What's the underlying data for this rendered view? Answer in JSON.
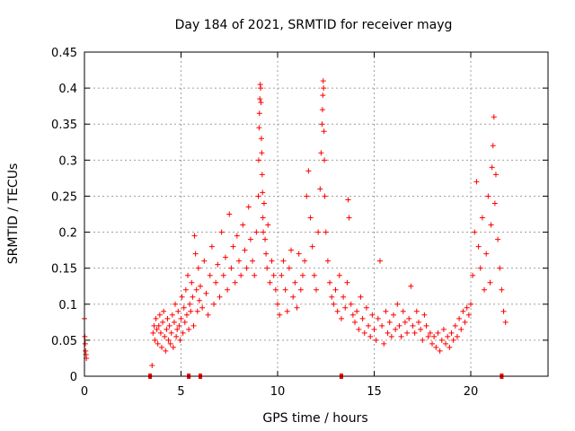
{
  "chart_data": {
    "type": "scatter",
    "title": "Day 184 of 2021, SRMTID for receiver mayg",
    "xlabel": "GPS time / hours",
    "ylabel": "SRMTID / TECUs",
    "xlim": [
      0,
      24
    ],
    "ylim": [
      0,
      0.45
    ],
    "xticks": [
      0,
      5,
      10,
      15,
      20
    ],
    "yticks": [
      0,
      0.05,
      0.1,
      0.15,
      0.2,
      0.25,
      0.3,
      0.35,
      0.4,
      0.45
    ],
    "grid": true,
    "marker": "plus",
    "color": "#ff0000",
    "x": [
      0.0,
      0.02,
      0.04,
      0.06,
      0.08,
      0.1,
      3.5,
      3.55,
      3.6,
      3.65,
      3.7,
      3.75,
      3.8,
      3.85,
      3.9,
      3.95,
      4.0,
      4.05,
      4.1,
      4.15,
      4.2,
      4.25,
      4.3,
      4.35,
      4.4,
      4.45,
      4.5,
      4.55,
      4.6,
      4.65,
      4.7,
      4.75,
      4.8,
      4.85,
      4.9,
      4.95,
      5.0,
      5.05,
      5.1,
      5.15,
      5.2,
      5.25,
      5.3,
      5.35,
      5.4,
      5.45,
      5.5,
      5.55,
      5.6,
      5.65,
      5.7,
      5.75,
      5.8,
      5.85,
      5.9,
      5.95,
      6.0,
      6.1,
      6.2,
      6.3,
      6.4,
      6.5,
      6.6,
      6.7,
      6.8,
      6.9,
      7.0,
      7.1,
      7.2,
      7.3,
      7.4,
      7.5,
      7.6,
      7.7,
      7.8,
      7.9,
      8.0,
      8.1,
      8.2,
      8.3,
      8.4,
      8.5,
      8.6,
      8.7,
      8.8,
      8.9,
      9.0,
      9.02,
      9.04,
      9.06,
      9.08,
      9.1,
      9.12,
      9.14,
      9.16,
      9.18,
      9.2,
      9.22,
      9.24,
      9.26,
      9.3,
      9.35,
      9.4,
      9.45,
      9.5,
      9.6,
      9.7,
      9.8,
      9.9,
      10.0,
      10.1,
      10.2,
      10.3,
      10.4,
      10.5,
      10.6,
      10.7,
      10.8,
      10.9,
      11.0,
      11.1,
      11.2,
      11.3,
      11.4,
      11.5,
      11.6,
      11.7,
      11.8,
      11.9,
      12.0,
      12.1,
      12.2,
      12.25,
      12.3,
      12.32,
      12.34,
      12.36,
      12.38,
      12.4,
      12.42,
      12.44,
      12.5,
      12.6,
      12.7,
      12.8,
      12.9,
      13.0,
      13.1,
      13.2,
      13.3,
      13.4,
      13.5,
      13.6,
      13.65,
      13.7,
      13.8,
      13.9,
      14.0,
      14.1,
      14.2,
      14.3,
      14.4,
      14.5,
      14.6,
      14.7,
      14.8,
      14.9,
      15.0,
      15.1,
      15.2,
      15.3,
      15.4,
      15.5,
      15.6,
      15.7,
      15.8,
      15.9,
      16.0,
      16.1,
      16.2,
      16.3,
      16.4,
      16.5,
      16.6,
      16.7,
      16.8,
      16.9,
      17.0,
      17.1,
      17.2,
      17.3,
      17.4,
      17.5,
      17.6,
      17.7,
      17.8,
      17.9,
      18.0,
      18.1,
      18.2,
      18.3,
      18.4,
      18.5,
      18.6,
      18.7,
      18.8,
      18.9,
      19.0,
      19.1,
      19.2,
      19.3,
      19.4,
      19.5,
      19.6,
      19.7,
      19.8,
      19.9,
      20.0,
      20.1,
      20.2,
      20.3,
      20.4,
      20.5,
      20.6,
      20.7,
      20.8,
      20.9,
      21.0,
      21.05,
      21.1,
      21.15,
      21.2,
      21.25,
      21.3,
      21.4,
      21.5,
      21.6,
      21.7,
      21.8,
      3.4,
      5.4,
      6.0,
      13.3,
      21.6
    ],
    "y": [
      0.08,
      0.055,
      0.045,
      0.035,
      0.03,
      0.025,
      0.015,
      0.06,
      0.07,
      0.05,
      0.08,
      0.065,
      0.045,
      0.07,
      0.085,
      0.06,
      0.04,
      0.075,
      0.09,
      0.055,
      0.035,
      0.065,
      0.08,
      0.05,
      0.07,
      0.045,
      0.06,
      0.085,
      0.04,
      0.075,
      0.1,
      0.055,
      0.065,
      0.09,
      0.07,
      0.05,
      0.08,
      0.11,
      0.06,
      0.095,
      0.075,
      0.12,
      0.085,
      0.14,
      0.065,
      0.1,
      0.09,
      0.13,
      0.11,
      0.07,
      0.195,
      0.17,
      0.12,
      0.09,
      0.15,
      0.105,
      0.125,
      0.095,
      0.16,
      0.115,
      0.085,
      0.14,
      0.18,
      0.1,
      0.13,
      0.155,
      0.11,
      0.2,
      0.14,
      0.165,
      0.12,
      0.225,
      0.15,
      0.18,
      0.13,
      0.195,
      0.16,
      0.14,
      0.21,
      0.175,
      0.15,
      0.235,
      0.19,
      0.16,
      0.14,
      0.2,
      0.25,
      0.3,
      0.345,
      0.365,
      0.385,
      0.405,
      0.4,
      0.38,
      0.33,
      0.31,
      0.28,
      0.255,
      0.22,
      0.2,
      0.24,
      0.19,
      0.17,
      0.15,
      0.21,
      0.13,
      0.16,
      0.14,
      0.12,
      0.1,
      0.085,
      0.14,
      0.16,
      0.12,
      0.09,
      0.15,
      0.175,
      0.11,
      0.13,
      0.095,
      0.17,
      0.12,
      0.14,
      0.16,
      0.25,
      0.285,
      0.22,
      0.18,
      0.14,
      0.12,
      0.2,
      0.26,
      0.31,
      0.35,
      0.37,
      0.39,
      0.41,
      0.4,
      0.34,
      0.3,
      0.25,
      0.2,
      0.16,
      0.13,
      0.11,
      0.1,
      0.12,
      0.09,
      0.14,
      0.08,
      0.11,
      0.095,
      0.13,
      0.245,
      0.22,
      0.1,
      0.085,
      0.075,
      0.09,
      0.065,
      0.11,
      0.08,
      0.06,
      0.095,
      0.07,
      0.055,
      0.085,
      0.065,
      0.05,
      0.08,
      0.16,
      0.07,
      0.045,
      0.09,
      0.06,
      0.075,
      0.055,
      0.085,
      0.065,
      0.1,
      0.07,
      0.055,
      0.09,
      0.075,
      0.06,
      0.08,
      0.125,
      0.07,
      0.06,
      0.09,
      0.075,
      0.065,
      0.05,
      0.085,
      0.07,
      0.055,
      0.06,
      0.045,
      0.055,
      0.04,
      0.06,
      0.035,
      0.05,
      0.065,
      0.045,
      0.055,
      0.04,
      0.06,
      0.05,
      0.07,
      0.055,
      0.08,
      0.065,
      0.09,
      0.075,
      0.095,
      0.085,
      0.1,
      0.14,
      0.2,
      0.27,
      0.18,
      0.15,
      0.22,
      0.12,
      0.17,
      0.25,
      0.13,
      0.21,
      0.29,
      0.32,
      0.36,
      0.24,
      0.28,
      0.19,
      0.15,
      0.12,
      0.09,
      0.075,
      0.0,
      0.0,
      0.0,
      0.0,
      0.0
    ]
  }
}
